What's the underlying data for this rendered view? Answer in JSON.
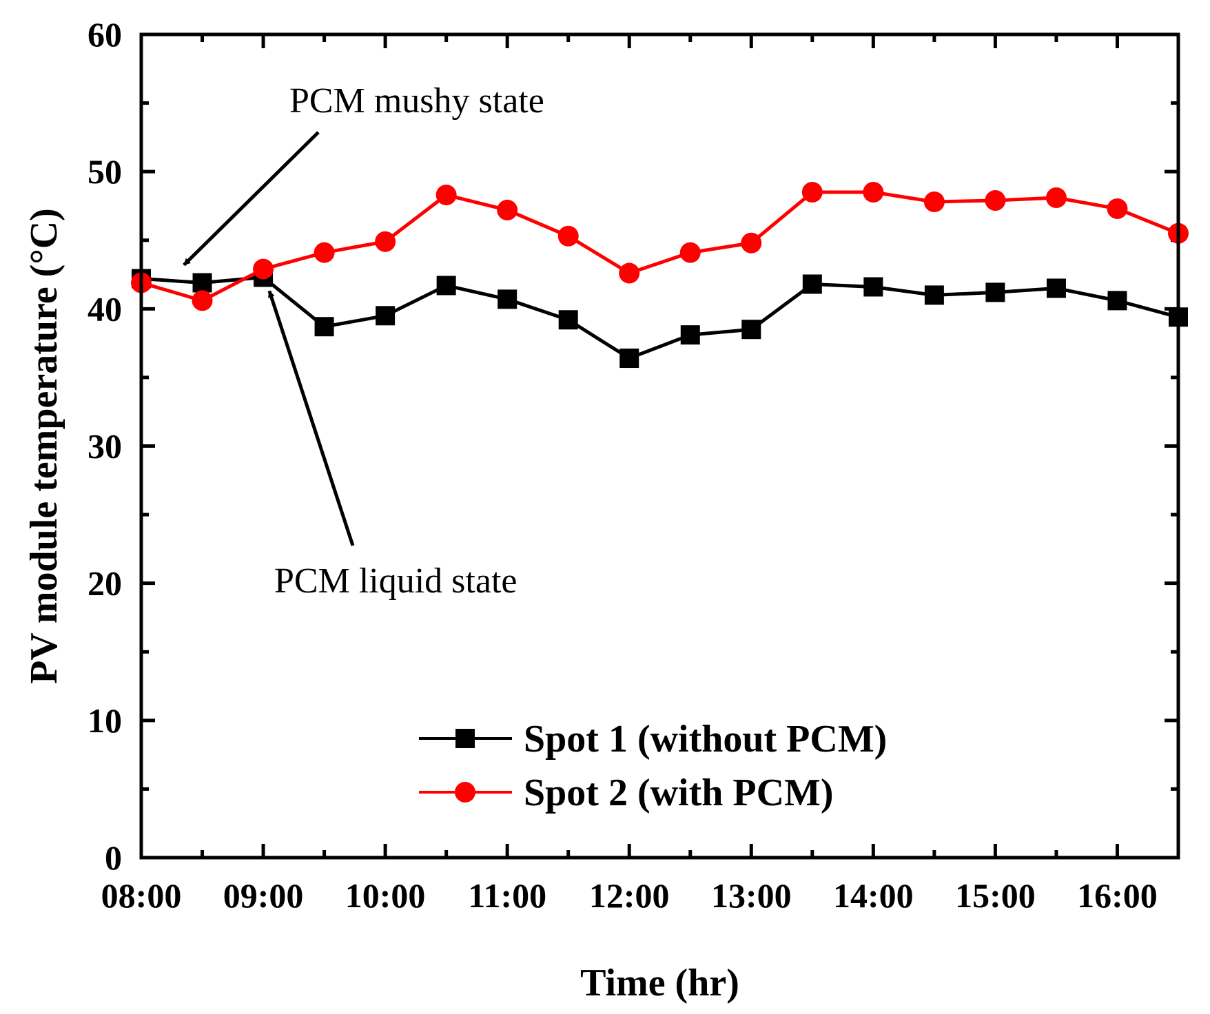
{
  "chart_data": {
    "type": "line",
    "title": "",
    "xlabel": "Time (hr)",
    "ylabel": "PV module temperature (°C)",
    "xlim": [
      8.0,
      16.5
    ],
    "ylim": [
      0,
      60
    ],
    "x_tick_values": [
      8,
      9,
      10,
      11,
      12,
      13,
      14,
      15,
      16
    ],
    "x_tick_labels": [
      "08:00",
      "09:00",
      "10:00",
      "11:00",
      "12:00",
      "13:00",
      "14:00",
      "15:00",
      "16:00"
    ],
    "y_tick_values": [
      0,
      10,
      20,
      30,
      40,
      50,
      60
    ],
    "y_tick_labels": [
      "0",
      "10",
      "20",
      "30",
      "40",
      "50",
      "60"
    ],
    "grid": false,
    "legend_position": "bottom-center",
    "x": [
      8.0,
      8.5,
      9.0,
      9.5,
      10.0,
      10.5,
      11.0,
      11.5,
      12.0,
      12.5,
      13.0,
      13.5,
      14.0,
      14.5,
      15.0,
      15.5,
      16.0,
      16.5
    ],
    "series": [
      {
        "name": "Spot 1 (without PCM)",
        "color": "#000000",
        "marker": "square",
        "values": [
          42.2,
          41.9,
          42.3,
          38.7,
          39.5,
          41.7,
          40.7,
          39.2,
          36.4,
          38.1,
          38.5,
          41.8,
          41.6,
          41.0,
          41.2,
          41.5,
          40.6,
          39.4
        ]
      },
      {
        "name": "Spot 2 (with PCM)",
        "color": "#ff0000",
        "marker": "circle",
        "values": [
          41.9,
          40.6,
          42.9,
          44.1,
          44.9,
          48.3,
          47.2,
          45.3,
          42.6,
          44.1,
          44.8,
          48.5,
          48.5,
          47.8,
          47.9,
          48.1,
          47.3,
          45.5
        ]
      }
    ],
    "annotations": [
      {
        "text": "PCM mushy state",
        "points_to_x": 8.35,
        "points_to_y": 43.2
      },
      {
        "text": "PCM liquid state",
        "points_to_x": 9.05,
        "points_to_y": 41.3
      }
    ]
  }
}
